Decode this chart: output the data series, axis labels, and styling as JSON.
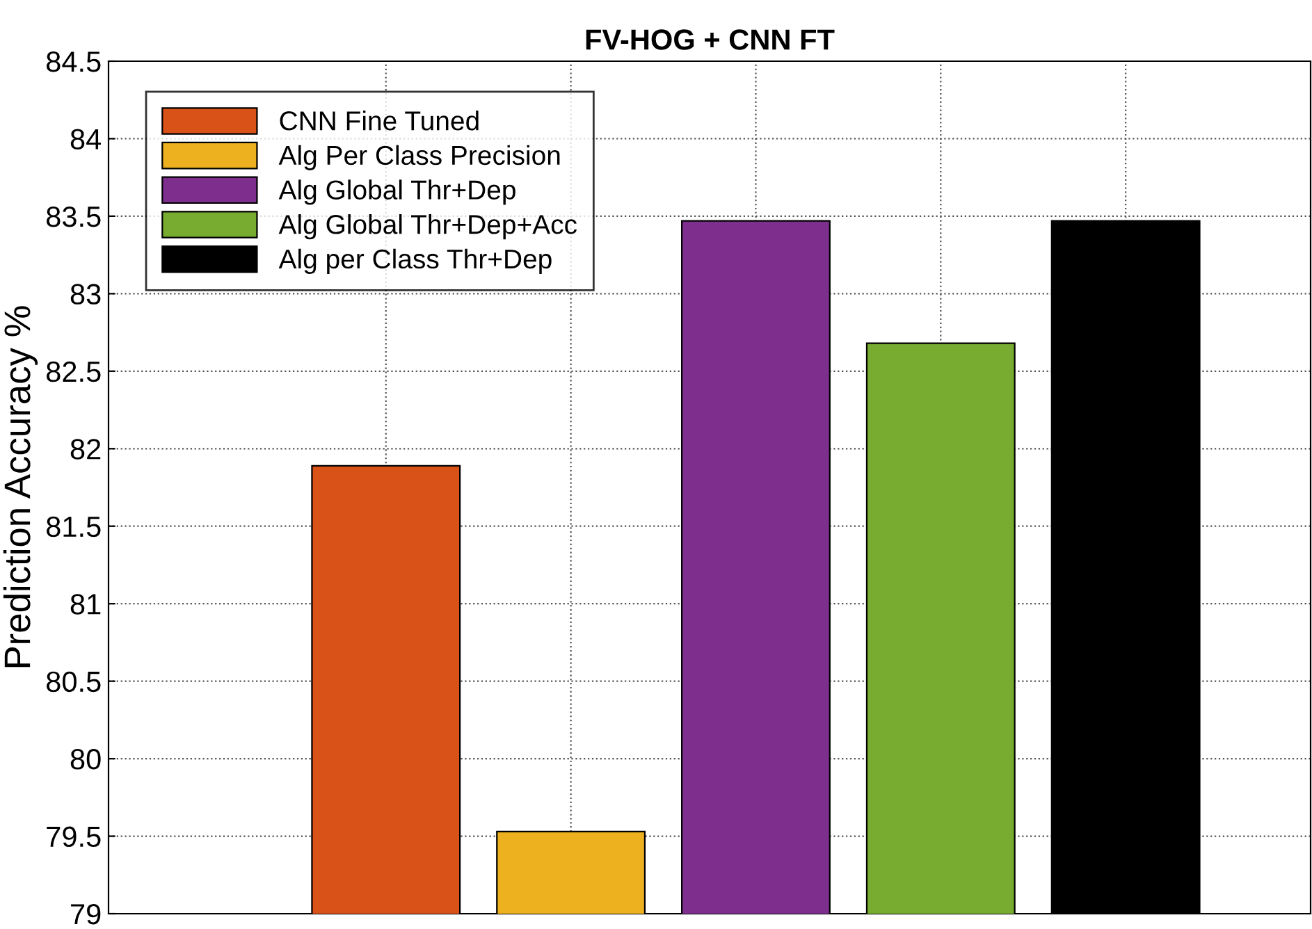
{
  "chart_data": {
    "type": "bar",
    "title": "FV-HOG + CNN FT",
    "ylabel": "Prediction Accuracy %",
    "categories": [
      null,
      null,
      null,
      null,
      null
    ],
    "series": [
      {
        "name": "CNN Fine Tuned",
        "color": "#d95319",
        "values": [
          81.89,
          null,
          null,
          null,
          null
        ]
      },
      {
        "name": "Alg Per Class Precision",
        "color": "#edb120",
        "values": [
          null,
          79.53,
          null,
          null,
          null
        ]
      },
      {
        "name": "Alg Global Thr+Dep",
        "color": "#7e2f8e",
        "values": [
          null,
          null,
          83.47,
          null,
          null
        ]
      },
      {
        "name": "Alg Global Thr+Dep+Acc",
        "color": "#77ac30",
        "values": [
          null,
          null,
          null,
          82.68,
          null
        ]
      },
      {
        "name": "Alg per Class Thr+Dep",
        "color": "#000000",
        "values": [
          null,
          null,
          null,
          null,
          83.47
        ]
      }
    ],
    "ylim": [
      79,
      84.5
    ],
    "yticks": [
      79,
      79.5,
      80,
      80.5,
      81,
      81.5,
      82,
      82.5,
      83,
      83.5,
      84,
      84.5
    ],
    "stacked": true,
    "grid": true,
    "legend": "top left",
    "tick_labels": "y"
  }
}
